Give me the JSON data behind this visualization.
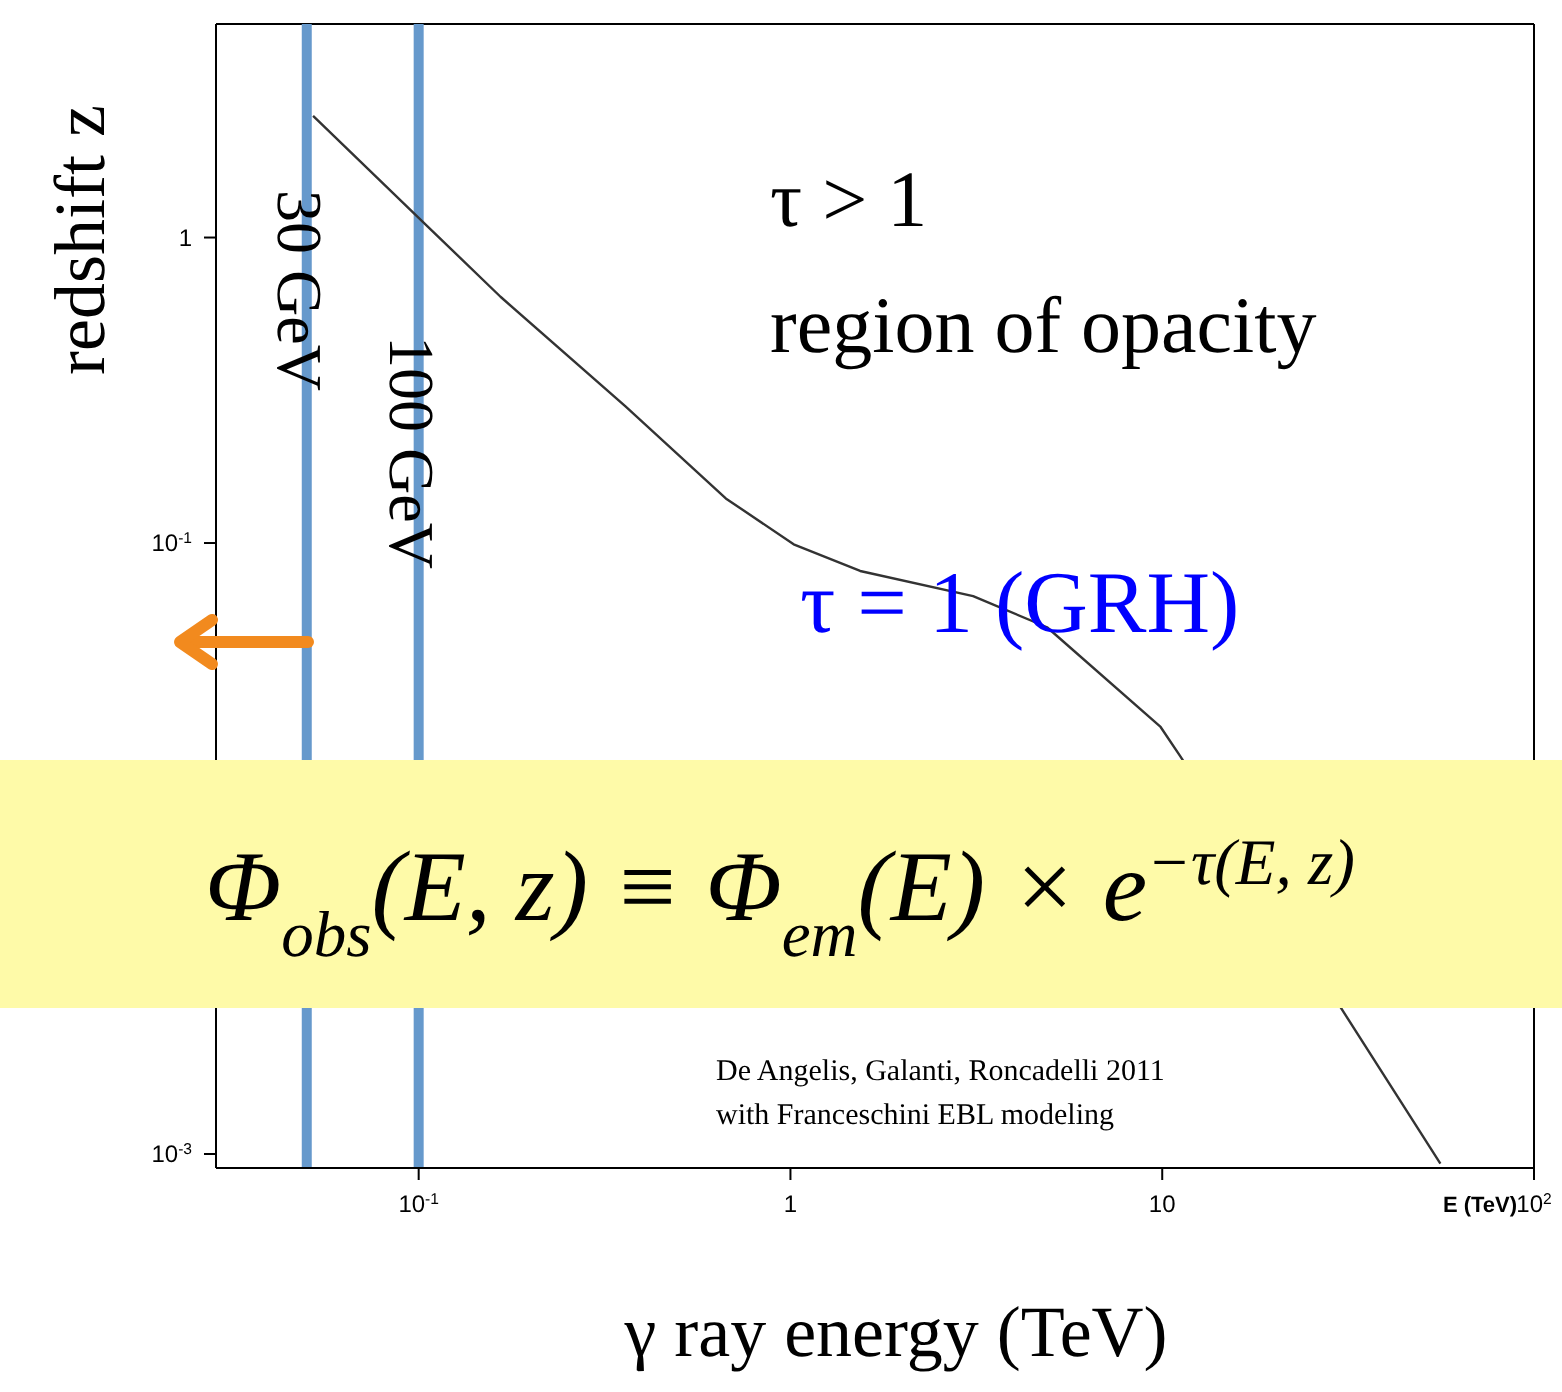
{
  "chart_data": {
    "type": "line",
    "xlabel": "γ ray energy (TeV)",
    "ylabel": "redshift z",
    "log": "xy",
    "marker": "none",
    "line_style": "solid",
    "xlim": [
      0.0285,
      100
    ],
    "ylim": [
      0.0009,
      5
    ],
    "xticks": [
      {
        "value": 0.1,
        "label": "10$^{-1}$"
      },
      1,
      10,
      {
        "value": 100,
        "label": "10$^{2}$"
      }
    ],
    "yticks": [
      {
        "value": 0.001,
        "label": "10$^{-3}$"
      },
      {
        "value": 0.1,
        "label": "10$^{-1}$"
      },
      1
    ],
    "x": [
      0.052,
      0.1,
      0.166,
      0.36,
      0.67,
      1.02,
      1.54,
      3.1,
      4.9,
      9.9,
      11.2,
      33,
      56
    ],
    "series": [
      {
        "color": "#333333",
        "values": [
          2.5,
          1.16,
          0.64,
          0.28,
          0.14,
          0.099,
          0.081,
          0.067,
          0.053,
          0.025,
          0.02,
          null,
          0.00093
        ]
      }
    ],
    "ref_lines": [
      {
        "axis": "x",
        "value": 0.05,
        "label": "30 GeV",
        "color": "#6699cc"
      },
      {
        "axis": "x",
        "value": 0.1,
        "label": "100 GeV",
        "color": "#6699cc"
      }
    ],
    "annotations": [
      "τ  > 1",
      "region of opacity",
      "τ = 1 (GRH)",
      "Φ$_{obs}$(E, z) ≡ Φ$_{em}$(E) × e$^{−τ(E, z)}$",
      "De Angelis, Galanti, Roncadelli 2011",
      "with Franceschini EBL modeling",
      "E (TeV)"
    ]
  }
}
